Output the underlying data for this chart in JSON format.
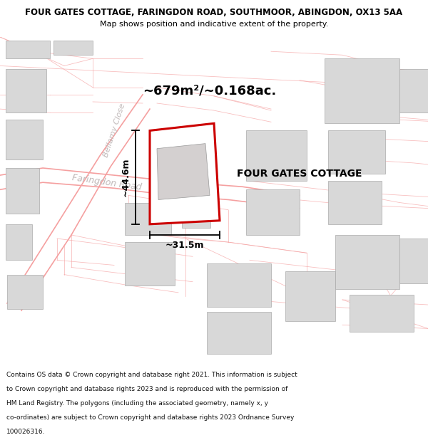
{
  "title_line1": "FOUR GATES COTTAGE, FARINGDON ROAD, SOUTHMOOR, ABINGDON, OX13 5AA",
  "title_line2": "Map shows position and indicative extent of the property.",
  "area_label": "~679m²/~0.168ac.",
  "property_name": "FOUR GATES COTTAGE",
  "dim_height": "~44.6m",
  "dim_width": "~31.5m",
  "road_label1": "Faringdon Road",
  "road_label2": "Bellamy Close",
  "footer_lines": [
    "Contains OS data © Crown copyright and database right 2021. This information is subject",
    "to Crown copyright and database rights 2023 and is reproduced with the permission of",
    "HM Land Registry. The polygons (including the associated geometry, namely x, y",
    "co-ordinates) are subject to Crown copyright and database rights 2023 Ordnance Survey",
    "100026316."
  ],
  "map_bg": "#ffffff",
  "property_fill": "#ffffff",
  "property_edge": "#cc0000",
  "building_fill": "#d8d8d8",
  "building_edge": "#aaaaaa",
  "road_line_color": "#f5a0a0",
  "road_line_lw": 0.8,
  "road_label_color": "#c0b8b8",
  "dim_line_color": "#000000",
  "text_color": "#000000"
}
